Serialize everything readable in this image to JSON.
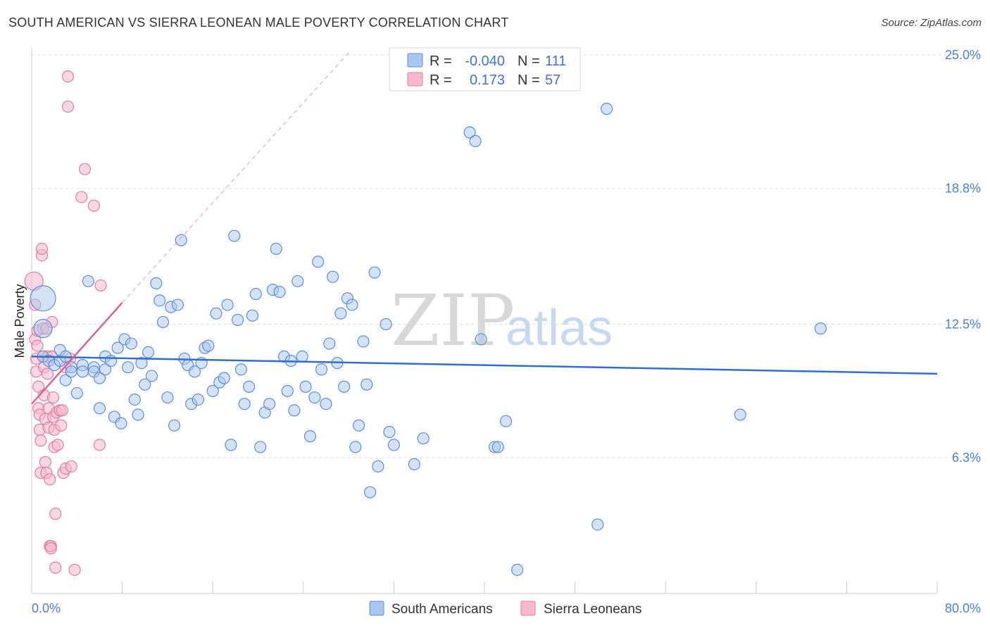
{
  "header": {
    "title": "SOUTH AMERICAN VS SIERRA LEONEAN MALE POVERTY CORRELATION CHART",
    "source": "Source: ZipAtlas.com"
  },
  "watermark": {
    "zip": "ZIP",
    "atlas": "atlas"
  },
  "legend": {
    "rows": [
      {
        "r_label": "R =",
        "r_value": "-0.040",
        "n_label": "N =",
        "n_value": "111"
      },
      {
        "r_label": "R =",
        "r_value": "0.173",
        "n_label": "N =",
        "n_value": "57"
      }
    ]
  },
  "bottom_legend": {
    "items": [
      "South Americans",
      "Sierra Leoneans"
    ]
  },
  "colors": {
    "blue_fill": "#a9c6ee",
    "blue_stroke": "#5b8fd9",
    "blue_line": "#2f6fcf",
    "pink_fill": "#f6b8cb",
    "pink_stroke": "#e47c9f",
    "pink_line": "#e0628c",
    "grid": "#dddddd",
    "axis": "#cccccc"
  },
  "chart_data": {
    "type": "scatter",
    "title": "SOUTH AMERICAN VS SIERRA LEONEAN MALE POVERTY CORRELATION CHART",
    "xlabel": "",
    "ylabel": "Male Poverty",
    "xlim": [
      0,
      80
    ],
    "ylim": [
      0,
      25
    ],
    "x_tick_labels": [
      "0.0%",
      "80.0%"
    ],
    "y_ticks": [
      6.3,
      12.5,
      18.8,
      25.0
    ],
    "y_tick_labels": [
      "6.3%",
      "12.5%",
      "18.8%",
      "25.0%"
    ],
    "grid": true,
    "legend_position": "top-center",
    "series": [
      {
        "name": "South Americans",
        "r": -0.04,
        "n": 111,
        "trend": {
          "x": [
            0,
            80
          ],
          "y": [
            11.0,
            10.2
          ]
        },
        "points": [
          [
            1.0,
            13.7
          ],
          [
            1.0,
            12.3
          ],
          [
            1.0,
            11.0
          ],
          [
            1.5,
            10.8
          ],
          [
            2.0,
            10.6
          ],
          [
            2.5,
            10.8
          ],
          [
            2.5,
            11.3
          ],
          [
            3.0,
            11.0
          ],
          [
            3.0,
            9.9
          ],
          [
            3.5,
            10.5
          ],
          [
            3.5,
            10.3
          ],
          [
            4.0,
            9.3
          ],
          [
            4.5,
            10.6
          ],
          [
            4.5,
            10.3
          ],
          [
            5.0,
            14.5
          ],
          [
            5.5,
            10.5
          ],
          [
            5.5,
            10.3
          ],
          [
            6.0,
            8.6
          ],
          [
            6.0,
            10.0
          ],
          [
            6.5,
            10.4
          ],
          [
            6.5,
            11.0
          ],
          [
            7.0,
            10.8
          ],
          [
            7.3,
            8.2
          ],
          [
            7.6,
            11.4
          ],
          [
            7.9,
            7.9
          ],
          [
            8.2,
            11.8
          ],
          [
            8.5,
            10.5
          ],
          [
            8.8,
            11.6
          ],
          [
            9.1,
            9.0
          ],
          [
            9.4,
            8.3
          ],
          [
            9.7,
            10.7
          ],
          [
            10.0,
            9.7
          ],
          [
            10.3,
            11.2
          ],
          [
            10.6,
            10.1
          ],
          [
            11.0,
            14.4
          ],
          [
            11.3,
            13.6
          ],
          [
            11.6,
            12.6
          ],
          [
            12.0,
            9.1
          ],
          [
            12.3,
            13.3
          ],
          [
            12.6,
            7.8
          ],
          [
            12.9,
            13.4
          ],
          [
            13.2,
            16.4
          ],
          [
            13.5,
            10.9
          ],
          [
            13.8,
            10.6
          ],
          [
            14.1,
            8.8
          ],
          [
            14.4,
            10.3
          ],
          [
            14.7,
            9.0
          ],
          [
            15.0,
            10.7
          ],
          [
            15.3,
            11.4
          ],
          [
            15.6,
            11.5
          ],
          [
            16.0,
            9.4
          ],
          [
            16.3,
            13.0
          ],
          [
            16.6,
            9.8
          ],
          [
            17.0,
            10.0
          ],
          [
            17.3,
            13.4
          ],
          [
            17.6,
            6.9
          ],
          [
            17.9,
            16.6
          ],
          [
            18.2,
            12.7
          ],
          [
            18.5,
            10.4
          ],
          [
            18.8,
            8.8
          ],
          [
            19.2,
            9.6
          ],
          [
            19.5,
            12.9
          ],
          [
            19.8,
            13.9
          ],
          [
            20.2,
            6.8
          ],
          [
            20.6,
            8.4
          ],
          [
            21.0,
            8.8
          ],
          [
            21.3,
            14.1
          ],
          [
            21.6,
            16.0
          ],
          [
            21.9,
            14.0
          ],
          [
            22.3,
            11.0
          ],
          [
            22.6,
            9.4
          ],
          [
            22.9,
            10.8
          ],
          [
            23.2,
            8.5
          ],
          [
            23.5,
            14.5
          ],
          [
            23.9,
            11.0
          ],
          [
            24.2,
            9.6
          ],
          [
            24.6,
            7.3
          ],
          [
            25.0,
            9.1
          ],
          [
            25.3,
            15.4
          ],
          [
            25.6,
            10.4
          ],
          [
            26.0,
            8.8
          ],
          [
            26.3,
            11.6
          ],
          [
            26.6,
            14.7
          ],
          [
            27.0,
            10.7
          ],
          [
            27.3,
            13.0
          ],
          [
            27.6,
            9.6
          ],
          [
            27.9,
            13.7
          ],
          [
            28.3,
            13.4
          ],
          [
            28.6,
            6.8
          ],
          [
            28.9,
            7.8
          ],
          [
            29.3,
            11.7
          ],
          [
            29.6,
            9.7
          ],
          [
            29.9,
            4.7
          ],
          [
            30.3,
            14.9
          ],
          [
            30.6,
            5.9
          ],
          [
            31.3,
            12.5
          ],
          [
            31.6,
            7.5
          ],
          [
            32.0,
            6.9
          ],
          [
            33.8,
            6.0
          ],
          [
            34.6,
            7.2
          ],
          [
            38.7,
            21.4
          ],
          [
            39.2,
            21.0
          ],
          [
            39.7,
            11.8
          ],
          [
            40.9,
            6.8
          ],
          [
            41.2,
            6.8
          ],
          [
            41.9,
            8.0
          ],
          [
            42.9,
            1.1
          ],
          [
            50.0,
            3.2
          ],
          [
            50.8,
            22.5
          ],
          [
            62.6,
            8.3
          ],
          [
            69.7,
            12.3
          ]
        ]
      },
      {
        "name": "Sierra Leoneans",
        "r": 0.173,
        "n": 57,
        "trend": {
          "x": [
            0,
            8
          ],
          "y": [
            8.8,
            13.5
          ],
          "extended": {
            "x": [
              8,
              28
            ],
            "y": [
              13.5,
              25.1
            ]
          }
        },
        "points": [
          [
            0.2,
            14.5
          ],
          [
            0.3,
            13.4
          ],
          [
            0.3,
            11.8
          ],
          [
            0.4,
            10.9
          ],
          [
            0.4,
            10.3
          ],
          [
            0.5,
            12.2
          ],
          [
            0.5,
            11.5
          ],
          [
            0.6,
            9.6
          ],
          [
            0.6,
            8.6
          ],
          [
            0.7,
            8.3
          ],
          [
            0.7,
            7.6
          ],
          [
            0.8,
            7.1
          ],
          [
            0.8,
            5.6
          ],
          [
            0.9,
            15.7
          ],
          [
            0.9,
            16.0
          ],
          [
            1.0,
            12.3
          ],
          [
            1.0,
            11.0
          ],
          [
            1.1,
            10.5
          ],
          [
            1.1,
            9.2
          ],
          [
            1.2,
            8.1
          ],
          [
            1.2,
            6.1
          ],
          [
            1.3,
            5.6
          ],
          [
            1.3,
            12.3
          ],
          [
            1.4,
            11.0
          ],
          [
            1.4,
            10.2
          ],
          [
            1.5,
            8.6
          ],
          [
            1.5,
            7.7
          ],
          [
            1.6,
            5.3
          ],
          [
            1.6,
            2.2
          ],
          [
            1.7,
            2.2
          ],
          [
            1.7,
            2.1
          ],
          [
            1.8,
            12.6
          ],
          [
            1.8,
            11.0
          ],
          [
            1.9,
            9.1
          ],
          [
            1.9,
            8.2
          ],
          [
            2.0,
            7.6
          ],
          [
            2.0,
            6.8
          ],
          [
            2.1,
            3.7
          ],
          [
            2.1,
            1.2
          ],
          [
            2.2,
            8.4
          ],
          [
            2.3,
            6.9
          ],
          [
            2.5,
            8.5
          ],
          [
            2.6,
            7.8
          ],
          [
            2.7,
            8.5
          ],
          [
            2.8,
            5.6
          ],
          [
            3.0,
            10.5
          ],
          [
            3.0,
            5.8
          ],
          [
            3.2,
            24.0
          ],
          [
            3.2,
            22.6
          ],
          [
            3.4,
            10.9
          ],
          [
            3.5,
            5.9
          ],
          [
            3.8,
            1.1
          ],
          [
            4.4,
            18.4
          ],
          [
            4.7,
            19.7
          ],
          [
            5.5,
            18.0
          ],
          [
            6.1,
            14.3
          ],
          [
            6.0,
            6.9
          ]
        ]
      }
    ]
  }
}
